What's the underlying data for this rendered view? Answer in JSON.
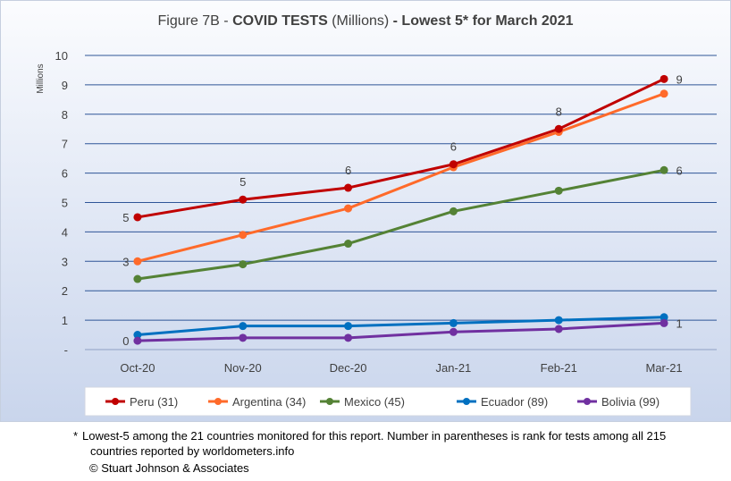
{
  "chart_data": {
    "type": "line",
    "title": {
      "prefix": "Figure 7B - ",
      "bold1": "COVID TESTS",
      "middle": " (Millions) ",
      "bold2": "- Lowest 5* for March 2021"
    },
    "ylabel": "Millions",
    "ylim": [
      0,
      10
    ],
    "yticks": [
      "-",
      "1",
      "2",
      "3",
      "4",
      "5",
      "6",
      "7",
      "8",
      "9",
      "10"
    ],
    "categories": [
      "Oct-20",
      "Nov-20",
      "Dec-20",
      "Jan-21",
      "Feb-21",
      "Mar-21"
    ],
    "grid": true,
    "legend_position": "bottom",
    "series": [
      {
        "name": "Peru (31)",
        "color": "#c00000",
        "values": [
          4.5,
          5.1,
          5.5,
          6.3,
          7.5,
          9.2
        ]
      },
      {
        "name": "Argentina (34)",
        "color": "#ff6a2a",
        "values": [
          3.0,
          3.9,
          4.8,
          6.2,
          7.4,
          8.7
        ]
      },
      {
        "name": "Mexico (45)",
        "color": "#548235",
        "values": [
          2.4,
          2.9,
          3.6,
          4.7,
          5.4,
          6.1
        ]
      },
      {
        "name": "Ecuador (89)",
        "color": "#0070c0",
        "values": [
          0.5,
          0.8,
          0.8,
          0.9,
          1.0,
          1.1
        ]
      },
      {
        "name": "Bolivia (99)",
        "color": "#7030a0",
        "values": [
          0.3,
          0.4,
          0.4,
          0.6,
          0.7,
          0.9
        ]
      }
    ],
    "annotations": [
      {
        "series": 0,
        "index": 0,
        "text": "5",
        "pos": "left"
      },
      {
        "series": 0,
        "index": 1,
        "text": "5",
        "pos": "above"
      },
      {
        "series": 0,
        "index": 2,
        "text": "6",
        "pos": "above"
      },
      {
        "series": 0,
        "index": 3,
        "text": "6",
        "pos": "above"
      },
      {
        "series": 0,
        "index": 4,
        "text": "8",
        "pos": "above"
      },
      {
        "series": 0,
        "index": 5,
        "text": "9",
        "pos": "right"
      },
      {
        "series": 1,
        "index": 0,
        "text": "3",
        "pos": "left"
      },
      {
        "series": 2,
        "index": 5,
        "text": "6",
        "pos": "right"
      },
      {
        "series": 4,
        "index": 0,
        "text": "0",
        "pos": "left"
      },
      {
        "series": 4,
        "index": 5,
        "text": "1",
        "pos": "right"
      }
    ]
  },
  "footnote": {
    "star": "*",
    "line1": "Lowest-5 among the 21 countries monitored for this report. Number in parentheses is rank for tests among all 215",
    "line2": "countries reported by worldometers.info"
  },
  "copyright": "© Stuart Johnson & Associates"
}
